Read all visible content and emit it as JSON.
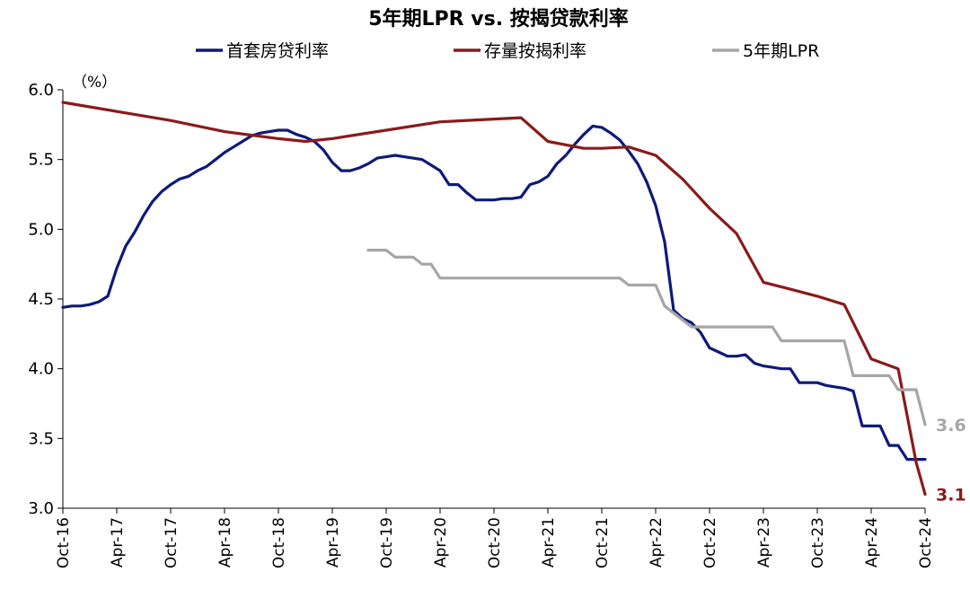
{
  "chart_data": {
    "type": "line",
    "title": "5年期LPR vs. 按揭贷款利率",
    "unit_label": "（%）",
    "ylim": [
      3.0,
      6.0
    ],
    "yticks": [
      "6.0",
      "5.5",
      "5.0",
      "4.5",
      "4.0",
      "3.5",
      "3.0"
    ],
    "x_ticks": [
      "Oct-16",
      "Apr-17",
      "Oct-17",
      "Apr-18",
      "Oct-18",
      "Apr-19",
      "Oct-19",
      "Apr-20",
      "Oct-20",
      "Apr-21",
      "Oct-21",
      "Apr-22",
      "Oct-22",
      "Apr-23",
      "Oct-23",
      "Apr-24",
      "Oct-24"
    ],
    "grid": false,
    "legend_position": "top",
    "series": [
      {
        "name": "首套房贷利率",
        "color": "#0d1a7a",
        "points": [
          [
            "2016-10",
            4.44
          ],
          [
            "2016-11",
            4.45
          ],
          [
            "2016-12",
            4.45
          ],
          [
            "2017-01",
            4.46
          ],
          [
            "2017-02",
            4.48
          ],
          [
            "2017-03",
            4.52
          ],
          [
            "2017-04",
            4.72
          ],
          [
            "2017-05",
            4.88
          ],
          [
            "2017-06",
            4.98
          ],
          [
            "2017-07",
            5.1
          ],
          [
            "2017-08",
            5.2
          ],
          [
            "2017-09",
            5.27
          ],
          [
            "2017-10",
            5.32
          ],
          [
            "2017-11",
            5.36
          ],
          [
            "2017-12",
            5.38
          ],
          [
            "2018-01",
            5.42
          ],
          [
            "2018-02",
            5.45
          ],
          [
            "2018-03",
            5.5
          ],
          [
            "2018-04",
            5.55
          ],
          [
            "2018-05",
            5.59
          ],
          [
            "2018-06",
            5.63
          ],
          [
            "2018-07",
            5.67
          ],
          [
            "2018-08",
            5.69
          ],
          [
            "2018-09",
            5.7
          ],
          [
            "2018-10",
            5.71
          ],
          [
            "2018-11",
            5.71
          ],
          [
            "2018-12",
            5.68
          ],
          [
            "2019-01",
            5.66
          ],
          [
            "2019-02",
            5.63
          ],
          [
            "2019-03",
            5.57
          ],
          [
            "2019-04",
            5.48
          ],
          [
            "2019-05",
            5.42
          ],
          [
            "2019-06",
            5.42
          ],
          [
            "2019-07",
            5.44
          ],
          [
            "2019-08",
            5.47
          ],
          [
            "2019-09",
            5.51
          ],
          [
            "2019-10",
            5.52
          ],
          [
            "2019-11",
            5.53
          ],
          [
            "2019-12",
            5.52
          ],
          [
            "2020-01",
            5.51
          ],
          [
            "2020-02",
            5.5
          ],
          [
            "2020-03",
            5.46
          ],
          [
            "2020-04",
            5.42
          ],
          [
            "2020-05",
            5.32
          ],
          [
            "2020-06",
            5.32
          ],
          [
            "2020-07",
            5.26
          ],
          [
            "2020-08",
            5.21
          ],
          [
            "2020-09",
            5.21
          ],
          [
            "2020-10",
            5.21
          ],
          [
            "2020-11",
            5.22
          ],
          [
            "2020-12",
            5.22
          ],
          [
            "2021-01",
            5.23
          ],
          [
            "2021-02",
            5.32
          ],
          [
            "2021-03",
            5.34
          ],
          [
            "2021-04",
            5.38
          ],
          [
            "2021-05",
            5.47
          ],
          [
            "2021-06",
            5.53
          ],
          [
            "2021-07",
            5.61
          ],
          [
            "2021-08",
            5.68
          ],
          [
            "2021-09",
            5.74
          ],
          [
            "2021-10",
            5.73
          ],
          [
            "2021-11",
            5.69
          ],
          [
            "2021-12",
            5.64
          ],
          [
            "2022-01",
            5.56
          ],
          [
            "2022-02",
            5.47
          ],
          [
            "2022-03",
            5.34
          ],
          [
            "2022-04",
            5.17
          ],
          [
            "2022-05",
            4.91
          ],
          [
            "2022-06",
            4.42
          ],
          [
            "2022-07",
            4.36
          ],
          [
            "2022-08",
            4.33
          ],
          [
            "2022-09",
            4.26
          ],
          [
            "2022-10",
            4.15
          ],
          [
            "2022-11",
            4.12
          ],
          [
            "2022-12",
            4.09
          ],
          [
            "2023-01",
            4.09
          ],
          [
            "2023-02",
            4.1
          ],
          [
            "2023-03",
            4.04
          ],
          [
            "2023-04",
            4.02
          ],
          [
            "2023-05",
            4.01
          ],
          [
            "2023-06",
            4.0
          ],
          [
            "2023-07",
            4.0
          ],
          [
            "2023-08",
            3.9
          ],
          [
            "2023-09",
            3.9
          ],
          [
            "2023-10",
            3.9
          ],
          [
            "2023-11",
            3.88
          ],
          [
            "2023-12",
            3.87
          ],
          [
            "2024-01",
            3.86
          ],
          [
            "2024-02",
            3.84
          ],
          [
            "2024-03",
            3.59
          ],
          [
            "2024-04",
            3.59
          ],
          [
            "2024-05",
            3.59
          ],
          [
            "2024-06",
            3.45
          ],
          [
            "2024-07",
            3.45
          ],
          [
            "2024-08",
            3.35
          ],
          [
            "2024-09",
            3.35
          ],
          [
            "2024-10",
            3.35
          ]
        ]
      },
      {
        "name": "存量按揭利率",
        "color": "#8b1a1a",
        "points": [
          [
            "2016-10",
            5.91
          ],
          [
            "2017-10",
            5.78
          ],
          [
            "2018-04",
            5.7
          ],
          [
            "2018-10",
            5.65
          ],
          [
            "2019-01",
            5.63
          ],
          [
            "2019-04",
            5.65
          ],
          [
            "2019-10",
            5.71
          ],
          [
            "2020-04",
            5.77
          ],
          [
            "2020-10",
            5.79
          ],
          [
            "2021-01",
            5.8
          ],
          [
            "2021-04",
            5.63
          ],
          [
            "2021-08",
            5.58
          ],
          [
            "2021-10",
            5.58
          ],
          [
            "2022-01",
            5.59
          ],
          [
            "2022-04",
            5.53
          ],
          [
            "2022-07",
            5.36
          ],
          [
            "2022-10",
            5.15
          ],
          [
            "2023-01",
            4.97
          ],
          [
            "2023-04",
            4.62
          ],
          [
            "2023-07",
            4.57
          ],
          [
            "2023-10",
            4.52
          ],
          [
            "2024-01",
            4.46
          ],
          [
            "2024-04",
            4.07
          ],
          [
            "2024-07",
            4.0
          ],
          [
            "2024-09",
            3.33
          ],
          [
            "2024-10",
            3.1
          ]
        ]
      },
      {
        "name": "5年期LPR",
        "color": "#a6a6a6",
        "points": [
          [
            "2019-08",
            4.85
          ],
          [
            "2019-09",
            4.85
          ],
          [
            "2019-10",
            4.85
          ],
          [
            "2019-11",
            4.8
          ],
          [
            "2019-12",
            4.8
          ],
          [
            "2020-01",
            4.8
          ],
          [
            "2020-02",
            4.75
          ],
          [
            "2020-03",
            4.75
          ],
          [
            "2020-04",
            4.65
          ],
          [
            "2021-01",
            4.65
          ],
          [
            "2021-12",
            4.65
          ],
          [
            "2022-01",
            4.6
          ],
          [
            "2022-04",
            4.6
          ],
          [
            "2022-05",
            4.45
          ],
          [
            "2022-08",
            4.3
          ],
          [
            "2023-05",
            4.3
          ],
          [
            "2023-06",
            4.2
          ],
          [
            "2023-12",
            4.2
          ],
          [
            "2024-01",
            4.2
          ],
          [
            "2024-02",
            3.95
          ],
          [
            "2024-06",
            3.95
          ],
          [
            "2024-07",
            3.85
          ],
          [
            "2024-09",
            3.85
          ],
          [
            "2024-10",
            3.6
          ]
        ]
      }
    ],
    "end_labels": [
      {
        "series": "5年期LPR",
        "text": "3.6",
        "color": "#a6a6a6"
      },
      {
        "series": "存量按揭利率",
        "text": "3.1",
        "color": "#8b1a1a"
      }
    ]
  }
}
